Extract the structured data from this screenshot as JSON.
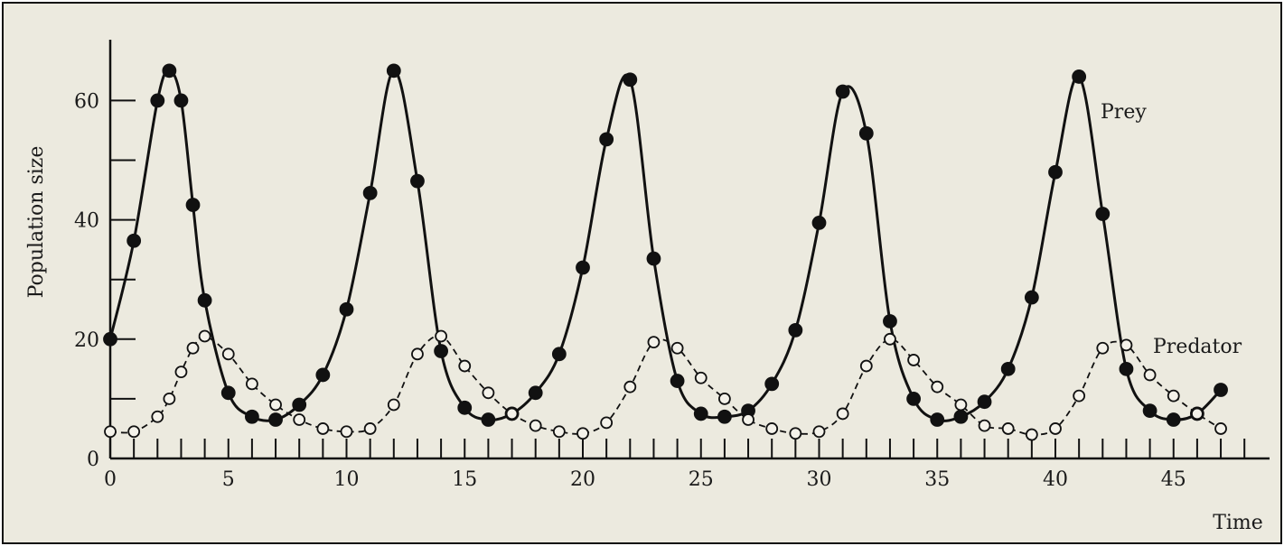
{
  "chart_data": {
    "type": "line",
    "title": "",
    "xlabel": "Time",
    "ylabel": "Population size",
    "xlim": [
      0,
      48
    ],
    "ylim": [
      0,
      70
    ],
    "x_ticks": [
      0,
      5,
      10,
      15,
      20,
      25,
      30,
      35,
      40,
      45
    ],
    "y_ticks": [
      0,
      20,
      40,
      60
    ],
    "grid": false,
    "series": [
      {
        "name": "Prey",
        "marker": "filled-circle",
        "line": "solid",
        "color": "#111111",
        "points": [
          [
            0,
            20
          ],
          [
            1,
            36.5
          ],
          [
            2,
            60
          ],
          [
            2.5,
            65
          ],
          [
            3,
            60
          ],
          [
            3.5,
            42.5
          ],
          [
            4,
            26.5
          ],
          [
            5,
            11
          ],
          [
            6,
            7
          ],
          [
            7,
            6.5
          ],
          [
            8,
            9
          ],
          [
            9,
            14
          ],
          [
            10,
            25
          ],
          [
            11,
            44.5
          ],
          [
            12,
            65
          ],
          [
            13,
            46.5
          ],
          [
            14,
            18
          ],
          [
            15,
            8.5
          ],
          [
            16,
            6.5
          ],
          [
            17,
            7.5
          ],
          [
            18,
            11
          ],
          [
            19,
            17.5
          ],
          [
            20,
            32
          ],
          [
            21,
            53.5
          ],
          [
            22,
            63.5
          ],
          [
            23,
            33.5
          ],
          [
            24,
            13
          ],
          [
            25,
            7.5
          ],
          [
            26,
            7
          ],
          [
            27,
            8
          ],
          [
            28,
            12.5
          ],
          [
            29,
            21.5
          ],
          [
            30,
            39.5
          ],
          [
            31,
            61.5
          ],
          [
            32,
            54.5
          ],
          [
            33,
            23
          ],
          [
            34,
            10
          ],
          [
            35,
            6.5
          ],
          [
            36,
            7
          ],
          [
            37,
            9.5
          ],
          [
            38,
            15
          ],
          [
            39,
            27
          ],
          [
            40,
            48
          ],
          [
            41,
            64
          ],
          [
            42,
            41
          ],
          [
            43,
            15
          ],
          [
            44,
            8
          ],
          [
            45,
            6.5
          ],
          [
            46,
            7.5
          ],
          [
            47,
            11.5
          ]
        ]
      },
      {
        "name": "Predator",
        "marker": "open-circle",
        "line": "dashed",
        "color": "#111111",
        "points": [
          [
            0,
            4.5
          ],
          [
            1,
            4.5
          ],
          [
            2,
            7
          ],
          [
            2.5,
            10
          ],
          [
            3,
            14.5
          ],
          [
            3.5,
            18.5
          ],
          [
            4,
            20.5
          ],
          [
            5,
            17.5
          ],
          [
            6,
            12.5
          ],
          [
            7,
            9
          ],
          [
            8,
            6.5
          ],
          [
            9,
            5
          ],
          [
            10,
            4.5
          ],
          [
            11,
            5
          ],
          [
            12,
            9
          ],
          [
            13,
            17.5
          ],
          [
            14,
            20.5
          ],
          [
            15,
            15.5
          ],
          [
            16,
            11
          ],
          [
            17,
            7.5
          ],
          [
            18,
            5.5
          ],
          [
            19,
            4.5
          ],
          [
            20,
            4.2
          ],
          [
            21,
            6
          ],
          [
            22,
            12
          ],
          [
            23,
            19.5
          ],
          [
            24,
            18.5
          ],
          [
            25,
            13.5
          ],
          [
            26,
            10
          ],
          [
            27,
            6.5
          ],
          [
            28,
            5
          ],
          [
            29,
            4.2
          ],
          [
            30,
            4.5
          ],
          [
            31,
            7.5
          ],
          [
            32,
            15.5
          ],
          [
            33,
            20
          ],
          [
            34,
            16.5
          ],
          [
            35,
            12
          ],
          [
            36,
            9
          ],
          [
            37,
            5.5
          ],
          [
            38,
            5
          ],
          [
            39,
            4
          ],
          [
            40,
            5
          ],
          [
            41,
            10.5
          ],
          [
            42,
            18.5
          ],
          [
            43,
            19
          ],
          [
            44,
            14
          ],
          [
            45,
            10.5
          ],
          [
            46,
            7.5
          ],
          [
            47,
            5
          ]
        ]
      }
    ]
  }
}
